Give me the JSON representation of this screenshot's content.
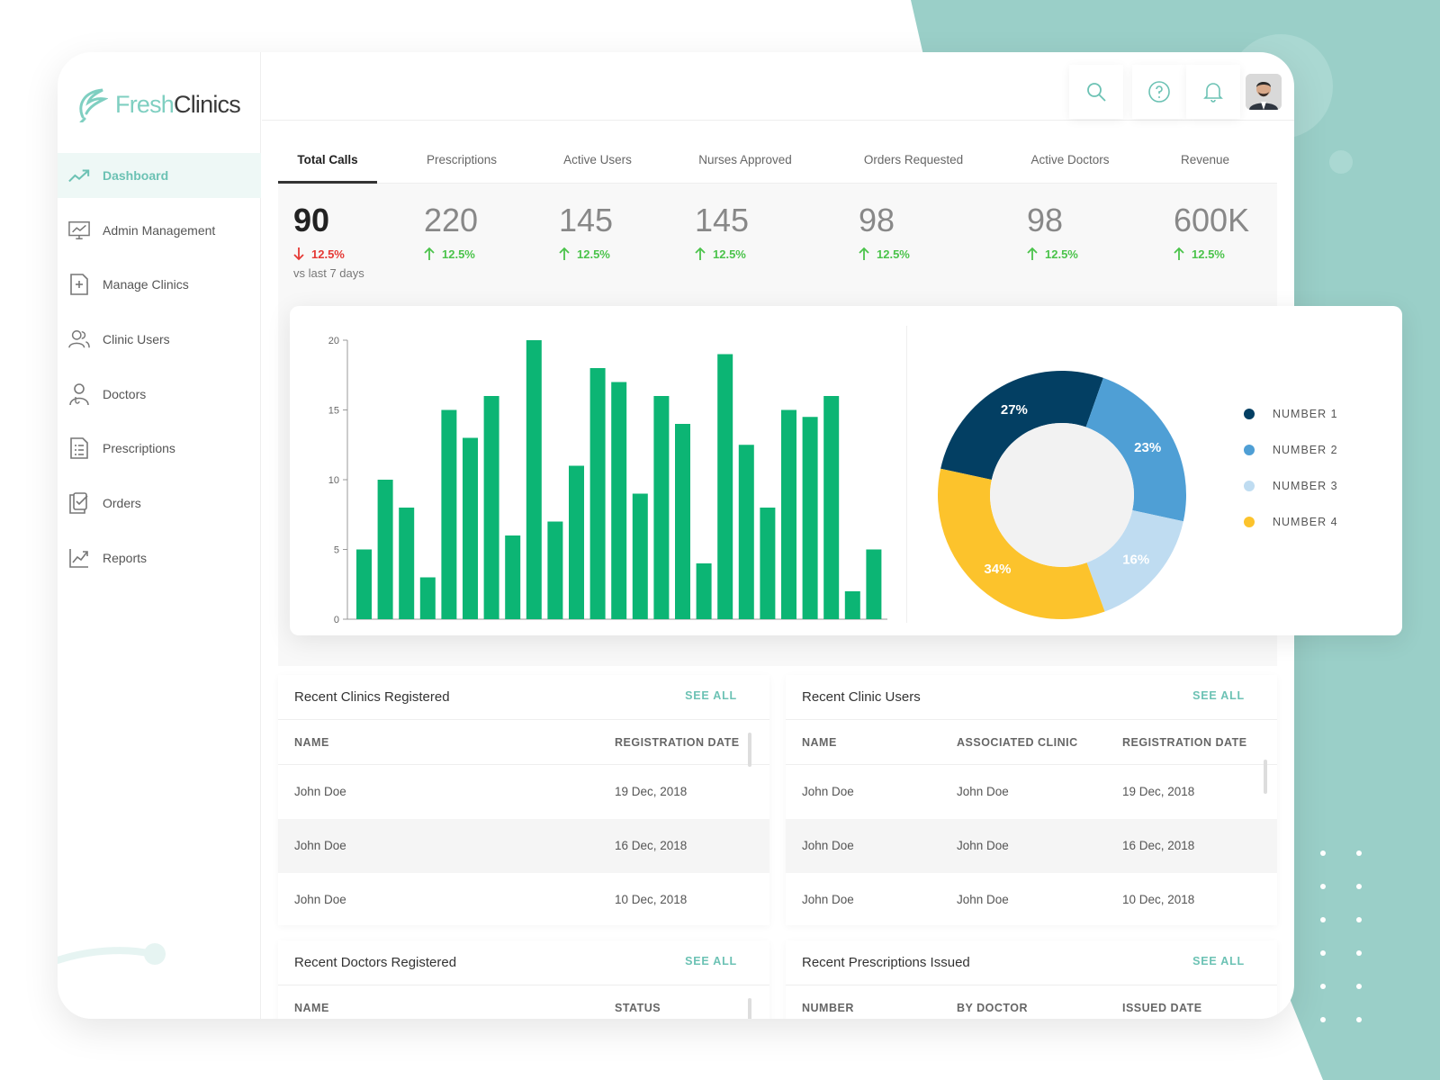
{
  "app": {
    "brand_part1": "Fresh",
    "brand_part2": "Clinics"
  },
  "colors": {
    "accent": "#6cc2b4",
    "teal_bg": "#9acfc8",
    "bar": "#0cb574",
    "up": "#4bc34b",
    "down": "#e53935"
  },
  "sidebar": {
    "items": [
      {
        "label": "Dashboard",
        "icon": "trend-up-icon",
        "active": true
      },
      {
        "label": "Admin Management",
        "icon": "monitor-chart-icon"
      },
      {
        "label": "Manage Clinics",
        "icon": "medical-file-icon"
      },
      {
        "label": "Clinic Users",
        "icon": "users-icon"
      },
      {
        "label": "Doctors",
        "icon": "doctor-icon"
      },
      {
        "label": "Prescriptions",
        "icon": "prescription-list-icon"
      },
      {
        "label": "Orders",
        "icon": "order-check-icon"
      },
      {
        "label": "Reports",
        "icon": "line-chart-icon"
      }
    ]
  },
  "header": {
    "icons": [
      "search-icon",
      "help-icon",
      "bell-icon",
      "avatar"
    ]
  },
  "stats": {
    "tabs": [
      {
        "label": "Total Calls",
        "value": "90",
        "change": "12.5%",
        "direction": "down",
        "active": true
      },
      {
        "label": "Prescriptions",
        "value": "220",
        "change": "12.5%",
        "direction": "up"
      },
      {
        "label": "Active Users",
        "value": "145",
        "change": "12.5%",
        "direction": "up"
      },
      {
        "label": "Nurses Approved",
        "value": "145",
        "change": "12.5%",
        "direction": "up"
      },
      {
        "label": "Orders Requested",
        "value": "98",
        "change": "12.5%",
        "direction": "up"
      },
      {
        "label": "Active Doctors",
        "value": "98",
        "change": "12.5%",
        "direction": "up"
      },
      {
        "label": "Revenue",
        "value": "600K",
        "change": "12.5%",
        "direction": "up"
      }
    ],
    "comparison": "vs last 7 days"
  },
  "chart_data": [
    {
      "type": "bar",
      "title": "",
      "xlabel": "",
      "ylabel": "",
      "ylim": [
        0,
        20
      ],
      "yticks": [
        0,
        5,
        10,
        15,
        20
      ],
      "values": [
        5,
        10,
        8,
        3,
        15,
        13,
        16,
        6,
        20,
        7,
        11,
        18,
        17,
        9,
        16,
        14,
        4,
        19,
        12.5,
        8,
        15,
        14.5,
        16,
        2,
        5
      ],
      "color": "#0cb574",
      "grid": false
    },
    {
      "type": "pie",
      "style": "donut",
      "labels": [
        "NUMBER 1",
        "NUMBER 2",
        "NUMBER 3",
        "NUMBER 4"
      ],
      "values": [
        27,
        23,
        16,
        34
      ],
      "value_labels": [
        "27%",
        "23%",
        "16%",
        "34%"
      ],
      "colors": [
        "#033f63",
        "#4f9fd5",
        "#bfdcf1",
        "#fcc32c"
      ],
      "legend": "right"
    }
  ],
  "tables": {
    "clinics": {
      "title": "Recent Clinics Registered",
      "see_all": "SEE ALL",
      "columns": [
        "NAME",
        "REGISTRATION DATE"
      ],
      "rows": [
        [
          "John Doe",
          "19 Dec, 2018"
        ],
        [
          "John Doe",
          "16 Dec, 2018"
        ],
        [
          "John Doe",
          "10 Dec, 2018"
        ]
      ]
    },
    "clinic_users": {
      "title": "Recent Clinic Users",
      "see_all": "SEE ALL",
      "columns": [
        "NAME",
        "ASSOCIATED CLINIC",
        "REGISTRATION DATE"
      ],
      "rows": [
        [
          "John Doe",
          "John Doe",
          "19 Dec, 2018"
        ],
        [
          "John Doe",
          "John Doe",
          "16 Dec, 2018"
        ],
        [
          "John Doe",
          "John Doe",
          "10 Dec, 2018"
        ]
      ]
    },
    "doctors": {
      "title": "Recent Doctors Registered",
      "see_all": "SEE ALL",
      "columns": [
        "NAME",
        "STATUS"
      ]
    },
    "prescriptions": {
      "title": "Recent Prescriptions Issued",
      "see_all": "SEE ALL",
      "columns": [
        "NUMBER",
        "BY DOCTOR",
        "ISSUED DATE"
      ]
    }
  }
}
